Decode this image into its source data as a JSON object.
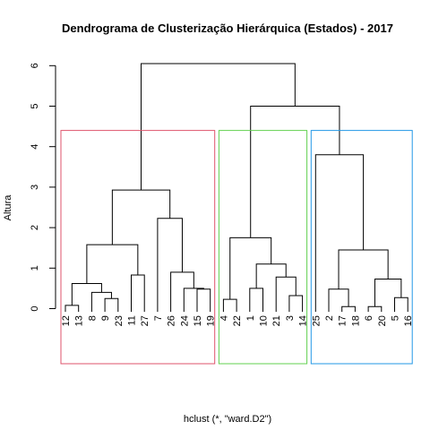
{
  "chart_data": {
    "type": "dendrogram",
    "title": "Dendrograma de Clusterização Hierárquica (Estados) - 2017",
    "ylabel": "Altura",
    "xlabel": "hclust (*, \"ward.D2\")",
    "ylim": [
      0,
      6
    ],
    "yticks": [
      0,
      1,
      2,
      3,
      4,
      5,
      6
    ],
    "leaf_baseline_offset": 0.08,
    "leaves": [
      "12",
      "13",
      "8",
      "9",
      "23",
      "11",
      "27",
      "7",
      "26",
      "24",
      "15",
      "19",
      "4",
      "22",
      "1",
      "10",
      "21",
      "3",
      "14",
      "25",
      "2",
      "17",
      "18",
      "6",
      "20",
      "5",
      "16"
    ],
    "merges": [
      {
        "id": "A",
        "left": "12",
        "right": "13",
        "height": 0.08
      },
      {
        "id": "B",
        "left": "9",
        "right": "23",
        "height": 0.25
      },
      {
        "id": "C",
        "left": "8",
        "right": "B",
        "height": 0.4
      },
      {
        "id": "D",
        "left": "A",
        "right": "C",
        "height": 0.62
      },
      {
        "id": "E",
        "left": "11",
        "right": "27",
        "height": 0.83
      },
      {
        "id": "F",
        "left": "D",
        "right": "E",
        "height": 1.58
      },
      {
        "id": "G",
        "left": "15",
        "right": "19",
        "height": 0.48
      },
      {
        "id": "H",
        "left": "24",
        "right": "G",
        "height": 0.5
      },
      {
        "id": "I",
        "left": "26",
        "right": "H",
        "height": 0.9
      },
      {
        "id": "J",
        "left": "7",
        "right": "I",
        "height": 2.23
      },
      {
        "id": "K",
        "left": "F",
        "right": "J",
        "height": 2.93
      },
      {
        "id": "L",
        "left": "4",
        "right": "22",
        "height": 0.23
      },
      {
        "id": "M",
        "left": "1",
        "right": "10",
        "height": 0.5
      },
      {
        "id": "N",
        "left": "3",
        "right": "14",
        "height": 0.32
      },
      {
        "id": "O",
        "left": "21",
        "right": "N",
        "height": 0.78
      },
      {
        "id": "P",
        "left": "M",
        "right": "O",
        "height": 1.1
      },
      {
        "id": "Q",
        "left": "L",
        "right": "P",
        "height": 1.75
      },
      {
        "id": "R",
        "left": "17",
        "right": "18",
        "height": 0.05
      },
      {
        "id": "S",
        "left": "2",
        "right": "R",
        "height": 0.48
      },
      {
        "id": "T",
        "left": "6",
        "right": "20",
        "height": 0.05
      },
      {
        "id": "U",
        "left": "5",
        "right": "16",
        "height": 0.27
      },
      {
        "id": "V",
        "left": "T",
        "right": "U",
        "height": 0.73
      },
      {
        "id": "W",
        "left": "S",
        "right": "V",
        "height": 1.45
      },
      {
        "id": "X",
        "left": "25",
        "right": "W",
        "height": 3.8
      },
      {
        "id": "Y",
        "left": "Q",
        "right": "X",
        "height": 5.0
      },
      {
        "id": "Z",
        "left": "K",
        "right": "Y",
        "height": 6.05
      }
    ],
    "cluster_boxes": [
      {
        "name": "cluster-1",
        "first_leaf": "12",
        "last_leaf": "19",
        "color": "#DF536B"
      },
      {
        "name": "cluster-2",
        "first_leaf": "4",
        "last_leaf": "14",
        "color": "#61D04F"
      },
      {
        "name": "cluster-3",
        "first_leaf": "25",
        "last_leaf": "16",
        "color": "#2297E6"
      }
    ],
    "cluster_box_top": 4.4
  }
}
